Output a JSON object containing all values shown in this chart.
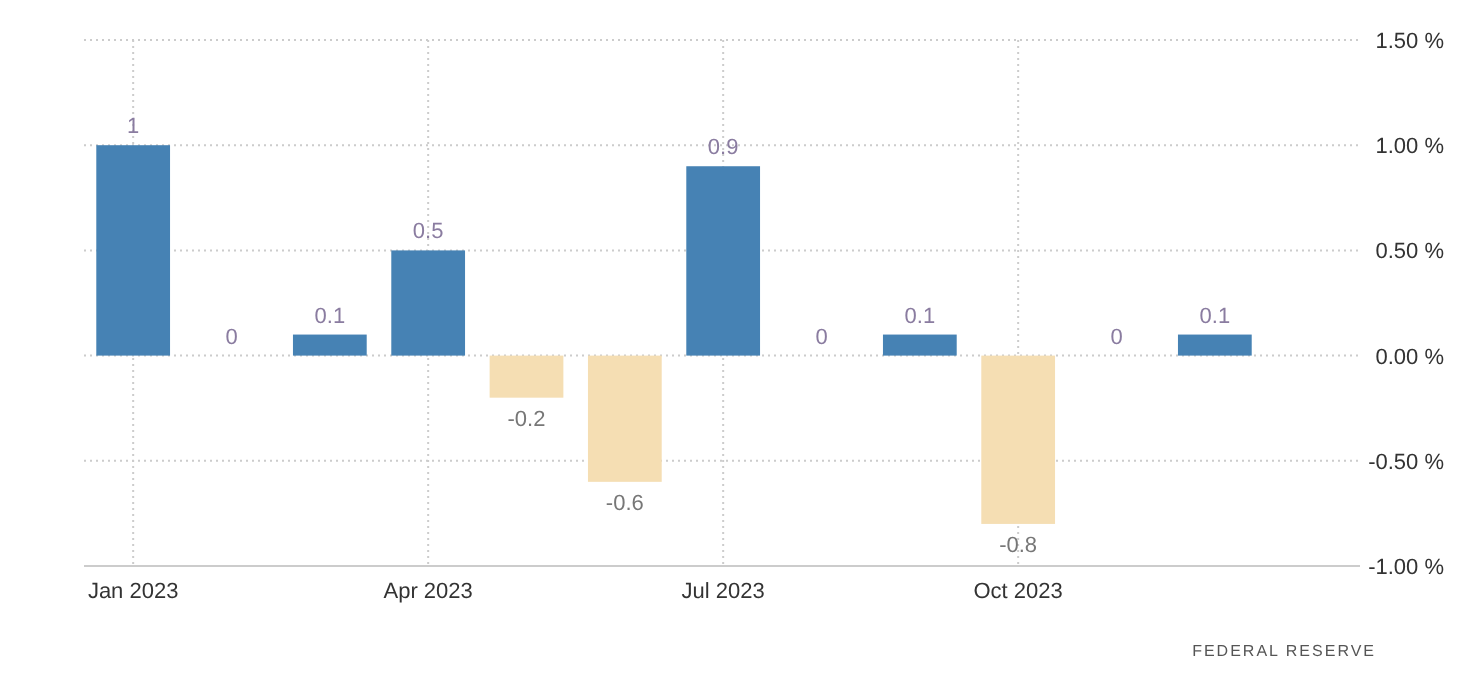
{
  "chart_data": {
    "type": "bar",
    "categories": [
      "Jan 2023",
      null,
      null,
      "Apr 2023",
      null,
      null,
      "Jul 2023",
      null,
      null,
      "Oct 2023",
      null,
      null
    ],
    "values": [
      1,
      0,
      0.1,
      0.5,
      -0.2,
      -0.6,
      0.9,
      0,
      0.1,
      -0.8,
      0,
      0.1
    ],
    "colors": [
      "#4682b4",
      "#4682b4",
      "#4682b4",
      "#4682b4",
      "#f5deb3",
      "#f5deb3",
      "#4682b4",
      "#4682b4",
      "#4682b4",
      "#f5deb3",
      "#4682b4",
      "#4682b4"
    ],
    "ylim": [
      -1,
      1.5
    ],
    "yticks": [
      {
        "value": -1,
        "label": "-1.00 %"
      },
      {
        "value": -0.5,
        "label": "-0.50 %"
      },
      {
        "value": 0,
        "label": "0.00 %"
      },
      {
        "value": 0.5,
        "label": "0.50 %"
      },
      {
        "value": 1,
        "label": "1.00 %"
      },
      {
        "value": 1.5,
        "label": "1.50 %"
      }
    ],
    "data_labels": true,
    "grid": true,
    "annotations": [
      "FEDERAL RESERVE"
    ]
  }
}
